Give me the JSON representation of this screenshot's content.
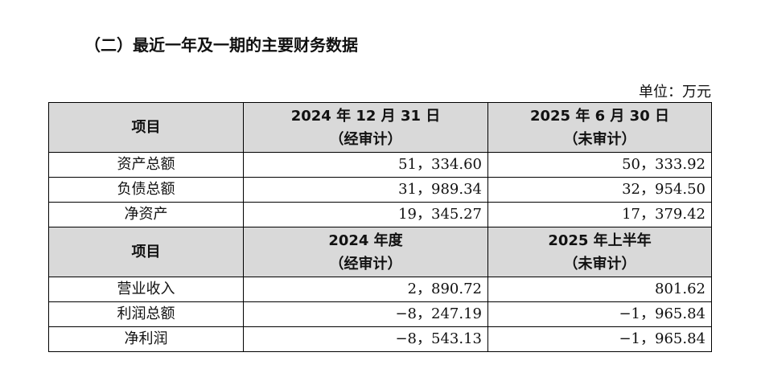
{
  "section_title": "（二）最近一年及一期的主要财务数据",
  "unit": "单位：万元",
  "balance": {
    "header": {
      "item": "项目",
      "col1_line1": "2024 年 12 月 31 日",
      "col1_line2": "（经审计）",
      "col2_line1": "2025 年 6 月 30 日",
      "col2_line2": "（未审计）"
    },
    "rows": [
      {
        "label": "资产总额",
        "v1": "51，334.60",
        "v2": "50，333.92"
      },
      {
        "label": "负债总额",
        "v1": "31，989.34",
        "v2": "32，954.50"
      },
      {
        "label": "净资产",
        "v1": "19，345.27",
        "v2": "17，379.42"
      }
    ]
  },
  "income": {
    "header": {
      "item": "项目",
      "col1_line1": "2024 年度",
      "col1_line2": "（经审计）",
      "col2_line1": "2025 年上半年",
      "col2_line2": "（未审计）"
    },
    "rows": [
      {
        "label": "营业收入",
        "v1": "2，890.72",
        "v2": "801.62"
      },
      {
        "label": "利润总额",
        "v1": "−8，247.19",
        "v2": "−1，965.84"
      },
      {
        "label": "净利润",
        "v1": "−8，543.13",
        "v2": "−1，965.84"
      }
    ]
  }
}
